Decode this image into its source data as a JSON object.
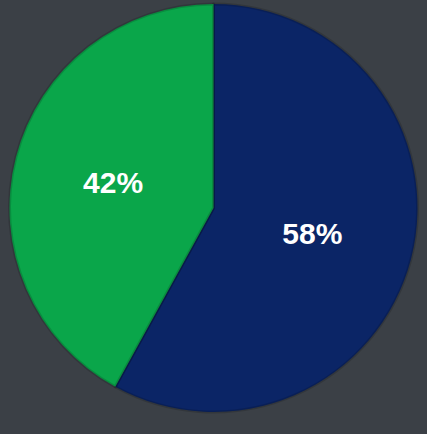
{
  "chart_data": {
    "type": "pie",
    "values": [
      58,
      42
    ],
    "value_labels": [
      "58%",
      "42%"
    ],
    "colors": [
      "#0b2566",
      "#0aa64a"
    ],
    "data_labels": true
  }
}
